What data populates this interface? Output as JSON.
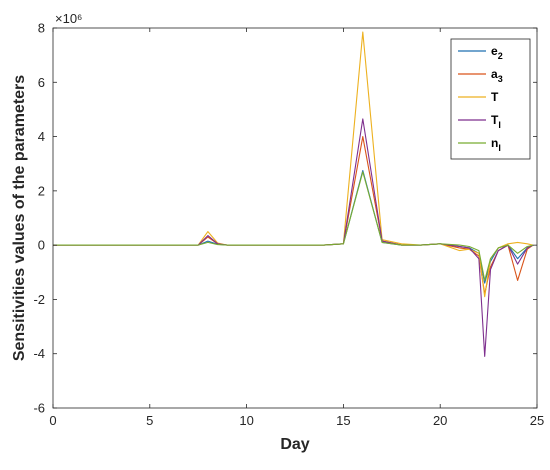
{
  "chart_data": {
    "type": "line",
    "title": "",
    "xlabel": "Day",
    "ylabel": "Sensitivities values of the parameters",
    "exponent_label": "×10⁶",
    "xlim": [
      0,
      25
    ],
    "ylim": [
      -6,
      8
    ],
    "xticks": [
      0,
      5,
      10,
      15,
      20,
      25
    ],
    "yticks": [
      -6,
      -4,
      -2,
      0,
      2,
      4,
      6,
      8
    ],
    "grid": false,
    "legend_position": "top-right",
    "x": [
      0,
      1,
      2,
      3,
      4,
      5,
      6,
      7,
      7.5,
      8,
      8.5,
      9,
      10,
      11,
      12,
      13,
      14,
      15,
      16,
      17,
      18,
      19,
      20,
      21,
      21.5,
      22,
      22.3,
      22.6,
      23,
      23.5,
      24,
      24.5,
      24.8
    ],
    "series": [
      {
        "name": "e2",
        "name_main": "e",
        "name_sub": "2",
        "color": "#1f6fb0",
        "values": [
          0,
          0,
          0,
          0,
          0,
          0,
          0,
          0,
          0,
          0.15,
          0.03,
          0,
          0,
          0,
          0,
          0,
          0,
          0.05,
          2.75,
          0.1,
          0,
          0,
          0.05,
          -0.05,
          -0.1,
          -0.3,
          -1.4,
          -0.6,
          -0.1,
          0,
          -0.5,
          -0.1,
          0
        ]
      },
      {
        "name": "a3",
        "name_main": "a",
        "name_sub": "3",
        "color": "#d9541a",
        "values": [
          0,
          0,
          0,
          0,
          0,
          0,
          0,
          0,
          0,
          0.3,
          0.05,
          0,
          0,
          0,
          0,
          0,
          0,
          0.05,
          4.0,
          0.15,
          0,
          0,
          0.05,
          -0.1,
          -0.15,
          -0.4,
          -1.8,
          -0.8,
          -0.2,
          0,
          -1.3,
          -0.15,
          0
        ]
      },
      {
        "name": "T",
        "name_main": "T",
        "name_sub": "",
        "color": "#edb120",
        "values": [
          0,
          0,
          0,
          0,
          0,
          0,
          0,
          0,
          0,
          0.5,
          0.08,
          0,
          0,
          0,
          0,
          0,
          0,
          0.05,
          7.85,
          0.2,
          0.05,
          0,
          0.05,
          -0.2,
          -0.15,
          -0.3,
          -1.9,
          -0.5,
          -0.1,
          0.05,
          0.1,
          0.05,
          0
        ]
      },
      {
        "name": "TI",
        "name_main": "T",
        "name_sub": "I",
        "color": "#7e2f8e",
        "values": [
          0,
          0,
          0,
          0,
          0,
          0,
          0,
          0,
          0,
          0.35,
          0.05,
          0,
          0,
          0,
          0,
          0,
          0,
          0.05,
          4.65,
          0.15,
          0,
          0,
          0.05,
          -0.05,
          -0.1,
          -0.5,
          -4.1,
          -0.9,
          -0.2,
          0,
          -0.7,
          -0.1,
          0
        ]
      },
      {
        "name": "nI",
        "name_main": "n",
        "name_sub": "I",
        "color": "#77ac30",
        "values": [
          0,
          0,
          0,
          0,
          0,
          0,
          0,
          0,
          0,
          0.1,
          0.02,
          0,
          0,
          0,
          0,
          0,
          0,
          0.05,
          2.7,
          0.1,
          0,
          0,
          0.05,
          0,
          -0.05,
          -0.2,
          -1.3,
          -0.5,
          -0.1,
          0,
          -0.3,
          -0.05,
          0
        ]
      }
    ]
  }
}
